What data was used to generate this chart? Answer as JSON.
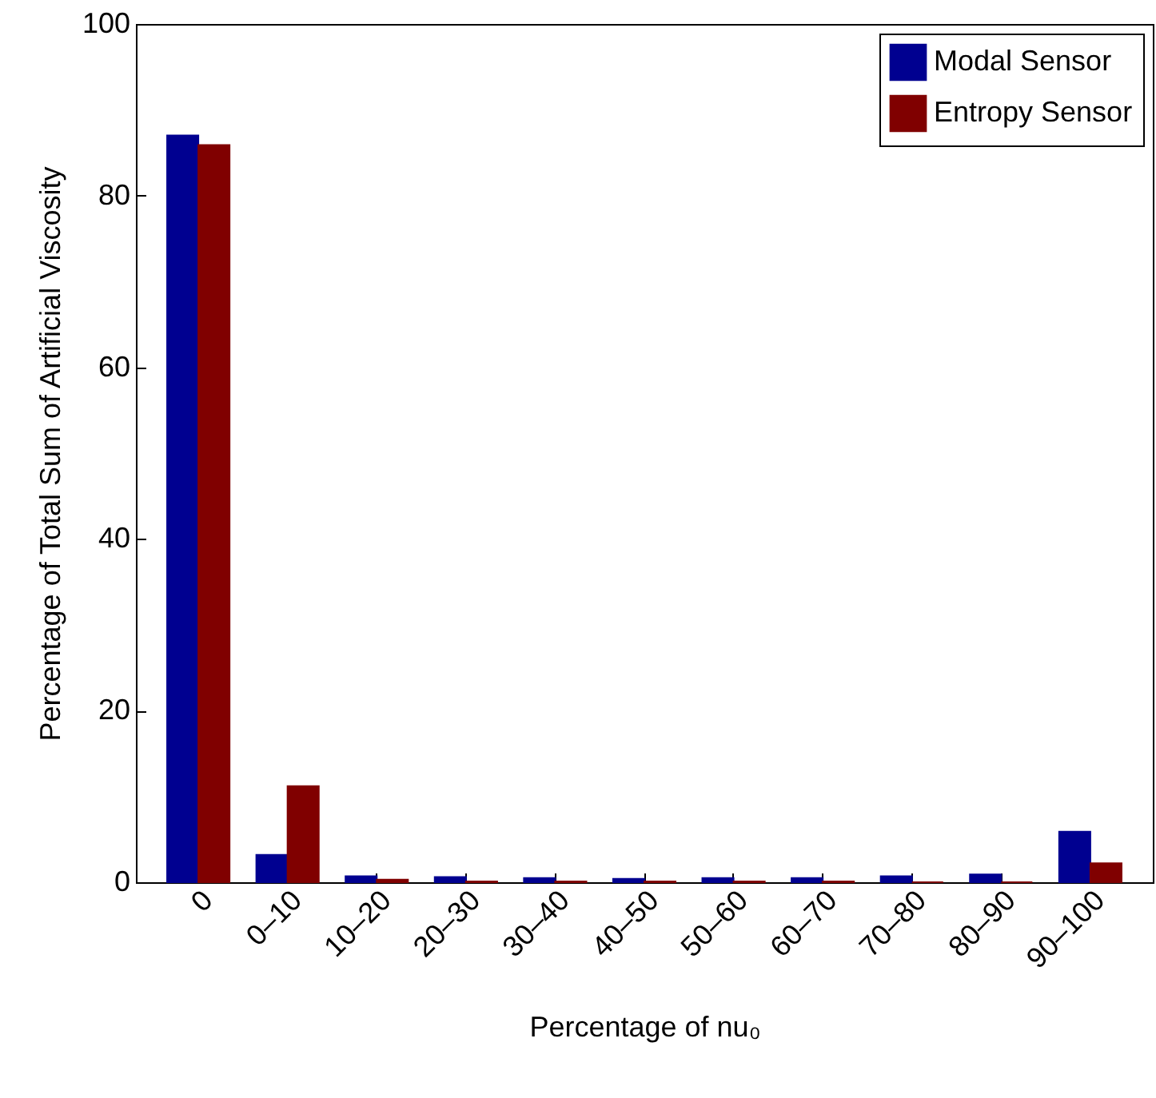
{
  "chart_data": {
    "type": "bar",
    "xlabel": "Percentage of nu₀",
    "ylabel": "Percentage of Total Sum of Artificial Viscosity",
    "categories": [
      "0",
      "0–10",
      "10–20",
      "20–30",
      "30–40",
      "40–50",
      "50–60",
      "60–70",
      "70–80",
      "80–90",
      "90–100"
    ],
    "series": [
      {
        "name": "Modal Sensor",
        "color": "#000090",
        "values": [
          87.0,
          3.2,
          0.7,
          0.6,
          0.5,
          0.4,
          0.5,
          0.5,
          0.7,
          0.9,
          5.9
        ]
      },
      {
        "name": "Entropy Sensor",
        "color": "#800000",
        "values": [
          85.9,
          11.2,
          0.3,
          0.1,
          0.1,
          0.1,
          0.1,
          0.1,
          0,
          0,
          2.2
        ]
      }
    ],
    "ylim": [
      0,
      100
    ],
    "yticks": [
      0,
      20,
      40,
      60,
      80,
      100
    ],
    "grid": false,
    "legend": "top right"
  }
}
